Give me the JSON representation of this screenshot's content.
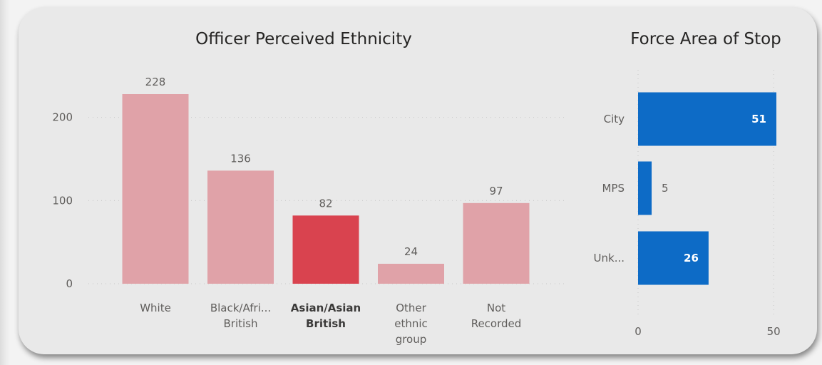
{
  "chart_data": [
    {
      "type": "bar",
      "title": "Officer Perceived Ethnicity",
      "categories": [
        [
          "White"
        ],
        [
          "Black/Afri...",
          "British"
        ],
        [
          "Asian/Asian",
          "British"
        ],
        [
          "Other",
          "ethnic",
          "group"
        ],
        [
          "Not",
          "Recorded"
        ]
      ],
      "values": [
        228,
        136,
        82,
        24,
        97
      ],
      "highlighted_index": 2,
      "ylim": [
        0,
        228
      ],
      "yticks": [
        0,
        100,
        200
      ],
      "grid": true,
      "colors": {
        "normal": "#e0a2a8",
        "highlight": "#d9434f"
      }
    },
    {
      "type": "bar",
      "orientation": "horizontal",
      "title": "Force Area of Stop",
      "categories": [
        "City",
        "MPS",
        "Unk..."
      ],
      "values": [
        51,
        5,
        26
      ],
      "xlim": [
        0,
        51
      ],
      "xticks": [
        0,
        50
      ],
      "grid": true,
      "colors": {
        "bar": "#0d6bc6"
      }
    }
  ]
}
